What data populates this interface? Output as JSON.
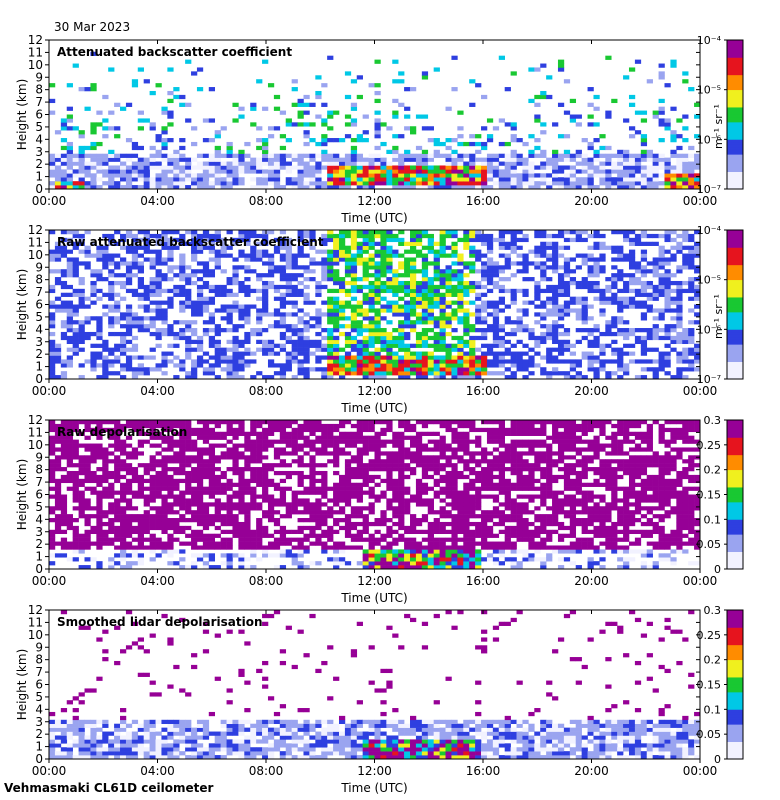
{
  "header": {
    "date": "30 Mar 2023"
  },
  "footer": {
    "site_instrument": "Vehmasmaki CL61D ceilometer"
  },
  "colors": {
    "background": "#ffffff",
    "colormap": [
      "#f2f2ff",
      "#9aa4f0",
      "#2e3fe0",
      "#00c8e6",
      "#19c832",
      "#f0f01e",
      "#ff8c00",
      "#e6141e",
      "#960096"
    ]
  },
  "chart_data": [
    {
      "type": "heatmap",
      "title": "Attenuated backscatter coefficient",
      "xlabel": "Time (UTC)",
      "ylabel": "Height (km)",
      "xticks": [
        "00:00",
        "04:00",
        "08:00",
        "12:00",
        "16:00",
        "20:00",
        "00:00"
      ],
      "xlim": [
        0,
        24
      ],
      "ylim": [
        0,
        12
      ],
      "yticks": [
        0,
        1,
        2,
        3,
        4,
        5,
        6,
        7,
        8,
        9,
        10,
        11,
        12
      ],
      "colorbar": {
        "scale": "log",
        "range": [
          1e-07,
          0.0001
        ],
        "labels": [
          "10⁻⁷",
          "10⁻⁶",
          "10⁻⁵",
          "10⁻⁴"
        ],
        "unit": "m⁻¹ sr⁻¹"
      },
      "features": [
        {
          "kind": "cloud",
          "t_start": 10.3,
          "t_end": 16.2,
          "base_km": 0.3,
          "top_km": 1.9
        },
        {
          "kind": "cloud",
          "t_start": 0.3,
          "t_end": 1.3,
          "base_km": 0.0,
          "top_km": 0.5
        },
        {
          "kind": "cloud",
          "t_start": 22.7,
          "t_end": 23.9,
          "base_km": 0.1,
          "top_km": 1.3
        },
        {
          "kind": "boundary_layer",
          "t_start": 0.0,
          "t_end": 24.0,
          "top_km": 2.8
        }
      ]
    },
    {
      "type": "heatmap",
      "title": "Raw attenuated backscatter coefficient",
      "xlabel": "Time (UTC)",
      "ylabel": "Height (km)",
      "xticks": [
        "00:00",
        "04:00",
        "08:00",
        "12:00",
        "16:00",
        "20:00",
        "00:00"
      ],
      "xlim": [
        0,
        24
      ],
      "ylim": [
        0,
        12
      ],
      "yticks": [
        0,
        1,
        2,
        3,
        4,
        5,
        6,
        7,
        8,
        9,
        10,
        11,
        12
      ],
      "colorbar": {
        "scale": "log",
        "range": [
          1e-07,
          0.0001
        ],
        "labels": [
          "10⁻⁷",
          "10⁻⁶",
          "10⁻⁵",
          "10⁻⁴"
        ],
        "unit": "m⁻¹ sr⁻¹"
      },
      "features": [
        {
          "kind": "cloud",
          "t_start": 10.3,
          "t_end": 16.2,
          "base_km": 0.3,
          "top_km": 1.9
        },
        {
          "kind": "noise_band",
          "t_start": 10.3,
          "t_end": 15.8,
          "base_km": 2.0,
          "top_km": 12.0
        }
      ]
    },
    {
      "type": "heatmap",
      "title": "Raw depolarisation",
      "xlabel": "Time (UTC)",
      "ylabel": "Height (km)",
      "xticks": [
        "00:00",
        "04:00",
        "08:00",
        "12:00",
        "16:00",
        "20:00",
        "00:00"
      ],
      "xlim": [
        0,
        24
      ],
      "ylim": [
        0,
        12
      ],
      "yticks": [
        0,
        1,
        2,
        3,
        4,
        5,
        6,
        7,
        8,
        9,
        10,
        11,
        12
      ],
      "colorbar": {
        "scale": "linear",
        "range": [
          0,
          0.3
        ],
        "labels": [
          "0",
          "0.05",
          "0.1",
          "0.15",
          "0.2",
          "0.25",
          "0.3"
        ],
        "unit": ""
      },
      "features": [
        {
          "kind": "cloud",
          "t_start": 11.5,
          "t_end": 16.0,
          "base_km": 0.0,
          "top_km": 1.6
        }
      ]
    },
    {
      "type": "heatmap",
      "title": "Smoothed lidar depolarisation",
      "xlabel": "Time (UTC)",
      "ylabel": "Height (km)",
      "xticks": [
        "00:00",
        "04:00",
        "08:00",
        "12:00",
        "16:00",
        "20:00",
        "00:00"
      ],
      "xlim": [
        0,
        24
      ],
      "ylim": [
        0,
        12
      ],
      "yticks": [
        0,
        1,
        2,
        3,
        4,
        5,
        6,
        7,
        8,
        9,
        10,
        11,
        12
      ],
      "colorbar": {
        "scale": "linear",
        "range": [
          0,
          0.3
        ],
        "labels": [
          "0",
          "0.05",
          "0.1",
          "0.15",
          "0.2",
          "0.25",
          "0.3"
        ],
        "unit": ""
      },
      "features": [
        {
          "kind": "cloud",
          "t_start": 11.5,
          "t_end": 16.0,
          "base_km": 0.0,
          "top_km": 1.6
        },
        {
          "kind": "boundary_layer",
          "t_start": 0.0,
          "t_end": 24.0,
          "top_km": 3.0
        }
      ]
    }
  ]
}
